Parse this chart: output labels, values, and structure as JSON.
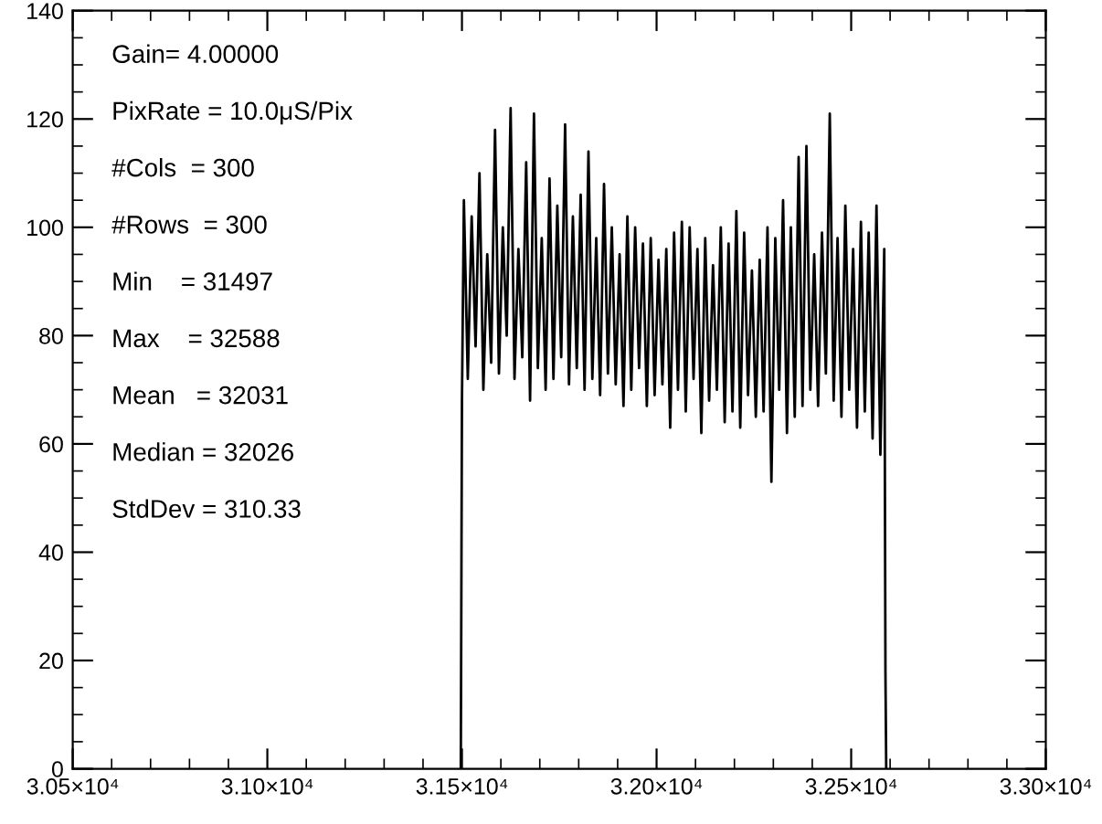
{
  "chart_data": {
    "type": "line",
    "x": [
      31497,
      31500,
      31505,
      31515,
      31525,
      31535,
      31545,
      31555,
      31565,
      31575,
      31585,
      31595,
      31605,
      31615,
      31625,
      31635,
      31645,
      31655,
      31665,
      31675,
      31685,
      31695,
      31705,
      31715,
      31725,
      31735,
      31745,
      31755,
      31765,
      31775,
      31785,
      31795,
      31805,
      31815,
      31825,
      31835,
      31845,
      31855,
      31865,
      31875,
      31885,
      31895,
      31905,
      31915,
      31925,
      31935,
      31945,
      31955,
      31965,
      31975,
      31985,
      31995,
      32005,
      32015,
      32025,
      32035,
      32045,
      32055,
      32065,
      32075,
      32085,
      32095,
      32105,
      32115,
      32125,
      32135,
      32145,
      32155,
      32165,
      32175,
      32185,
      32195,
      32205,
      32215,
      32225,
      32235,
      32245,
      32255,
      32265,
      32275,
      32285,
      32295,
      32305,
      32315,
      32325,
      32335,
      32345,
      32355,
      32365,
      32375,
      32385,
      32395,
      32405,
      32415,
      32425,
      32435,
      32445,
      32455,
      32465,
      32475,
      32485,
      32495,
      32505,
      32515,
      32525,
      32535,
      32545,
      32555,
      32565,
      32575,
      32585,
      32588,
      32590
    ],
    "series": [
      {
        "color": "#000000",
        "values": [
          0,
          68,
          105,
          72,
          102,
          78,
          110,
          70,
          95,
          75,
          118,
          73,
          100,
          80,
          122,
          72,
          96,
          76,
          112,
          68,
          121,
          74,
          98,
          70,
          109,
          72,
          104,
          76,
          119,
          71,
          102,
          74,
          106,
          70,
          114,
          72,
          98,
          69,
          108,
          73,
          100,
          71,
          95,
          67,
          102,
          70,
          100,
          74,
          97,
          67,
          98,
          69,
          94,
          71,
          96,
          63,
          99,
          70,
          101,
          66,
          100,
          72,
          96,
          62,
          98,
          68,
          93,
          70,
          100,
          64,
          97,
          66,
          103,
          63,
          99,
          69,
          92,
          65,
          94,
          66,
          100,
          53,
          98,
          70,
          105,
          62,
          100,
          65,
          113,
          67,
          115,
          70,
          95,
          67,
          99,
          73,
          121,
          68,
          98,
          65,
          104,
          70,
          96,
          63,
          101,
          66,
          99,
          61,
          104,
          58,
          96,
          18,
          0
        ]
      }
    ],
    "xlim": [
      30500,
      33000
    ],
    "xticks": [
      {
        "value": 30500,
        "label": "3.05×10⁴"
      },
      {
        "value": 31000,
        "label": "3.10×10⁴"
      },
      {
        "value": 31500,
        "label": "3.15×10⁴"
      },
      {
        "value": 32000,
        "label": "3.20×10⁴"
      },
      {
        "value": 32500,
        "label": "3.25×10⁴"
      },
      {
        "value": 33000,
        "label": "3.30×10⁴"
      }
    ],
    "ylim": [
      0,
      140
    ],
    "yticks": [
      0,
      20,
      40,
      60,
      80,
      100,
      120,
      140
    ],
    "grid": false,
    "legend": false,
    "line_style": "solid",
    "marker": "none",
    "annotations": [
      "Gain= 4.00000",
      "PixRate = 10.0μS/Pix",
      "#Cols  = 300",
      "#Rows  = 300",
      "Min    = 31497",
      "Max    = 32588",
      "Mean   = 32031",
      "Median = 32026",
      "StdDev = 310.33"
    ]
  }
}
